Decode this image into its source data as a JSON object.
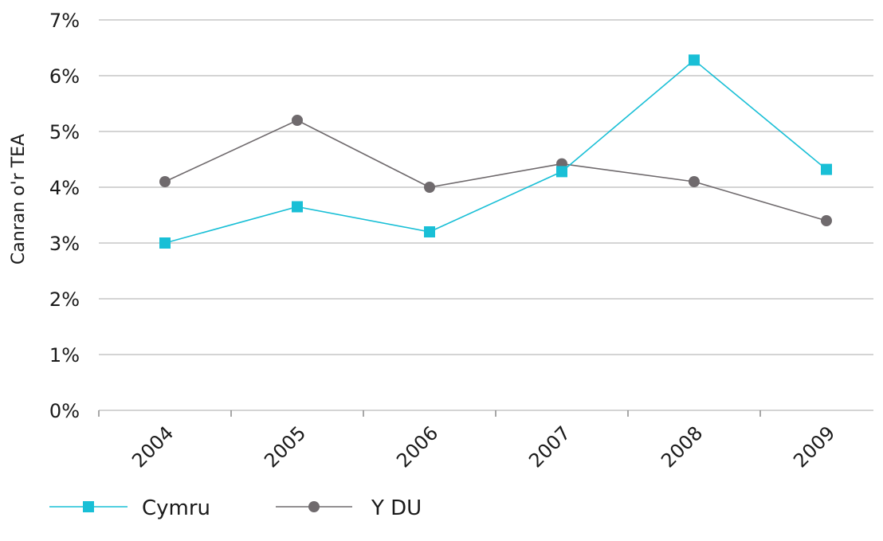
{
  "chart_data": {
    "type": "line",
    "title": "",
    "xlabel": "",
    "ylabel": "Canran o'r TEA",
    "categories": [
      "2004",
      "2005",
      "2006",
      "2007",
      "2008",
      "2009"
    ],
    "ylim": [
      0,
      7
    ],
    "yticks": [
      "0%",
      "1%",
      "2%",
      "3%",
      "4%",
      "5%",
      "6%",
      "7%"
    ],
    "grid": true,
    "legend_position": "bottom-left",
    "series": [
      {
        "name": "Cymru",
        "values": [
          3.0,
          3.65,
          3.2,
          4.28,
          6.28,
          4.32
        ],
        "color": "#19bfd6",
        "marker": "square"
      },
      {
        "name": "Y DU",
        "values": [
          4.1,
          5.2,
          4.0,
          4.42,
          4.1,
          3.4
        ],
        "color": "#6f6a6d",
        "marker": "circle"
      }
    ]
  }
}
